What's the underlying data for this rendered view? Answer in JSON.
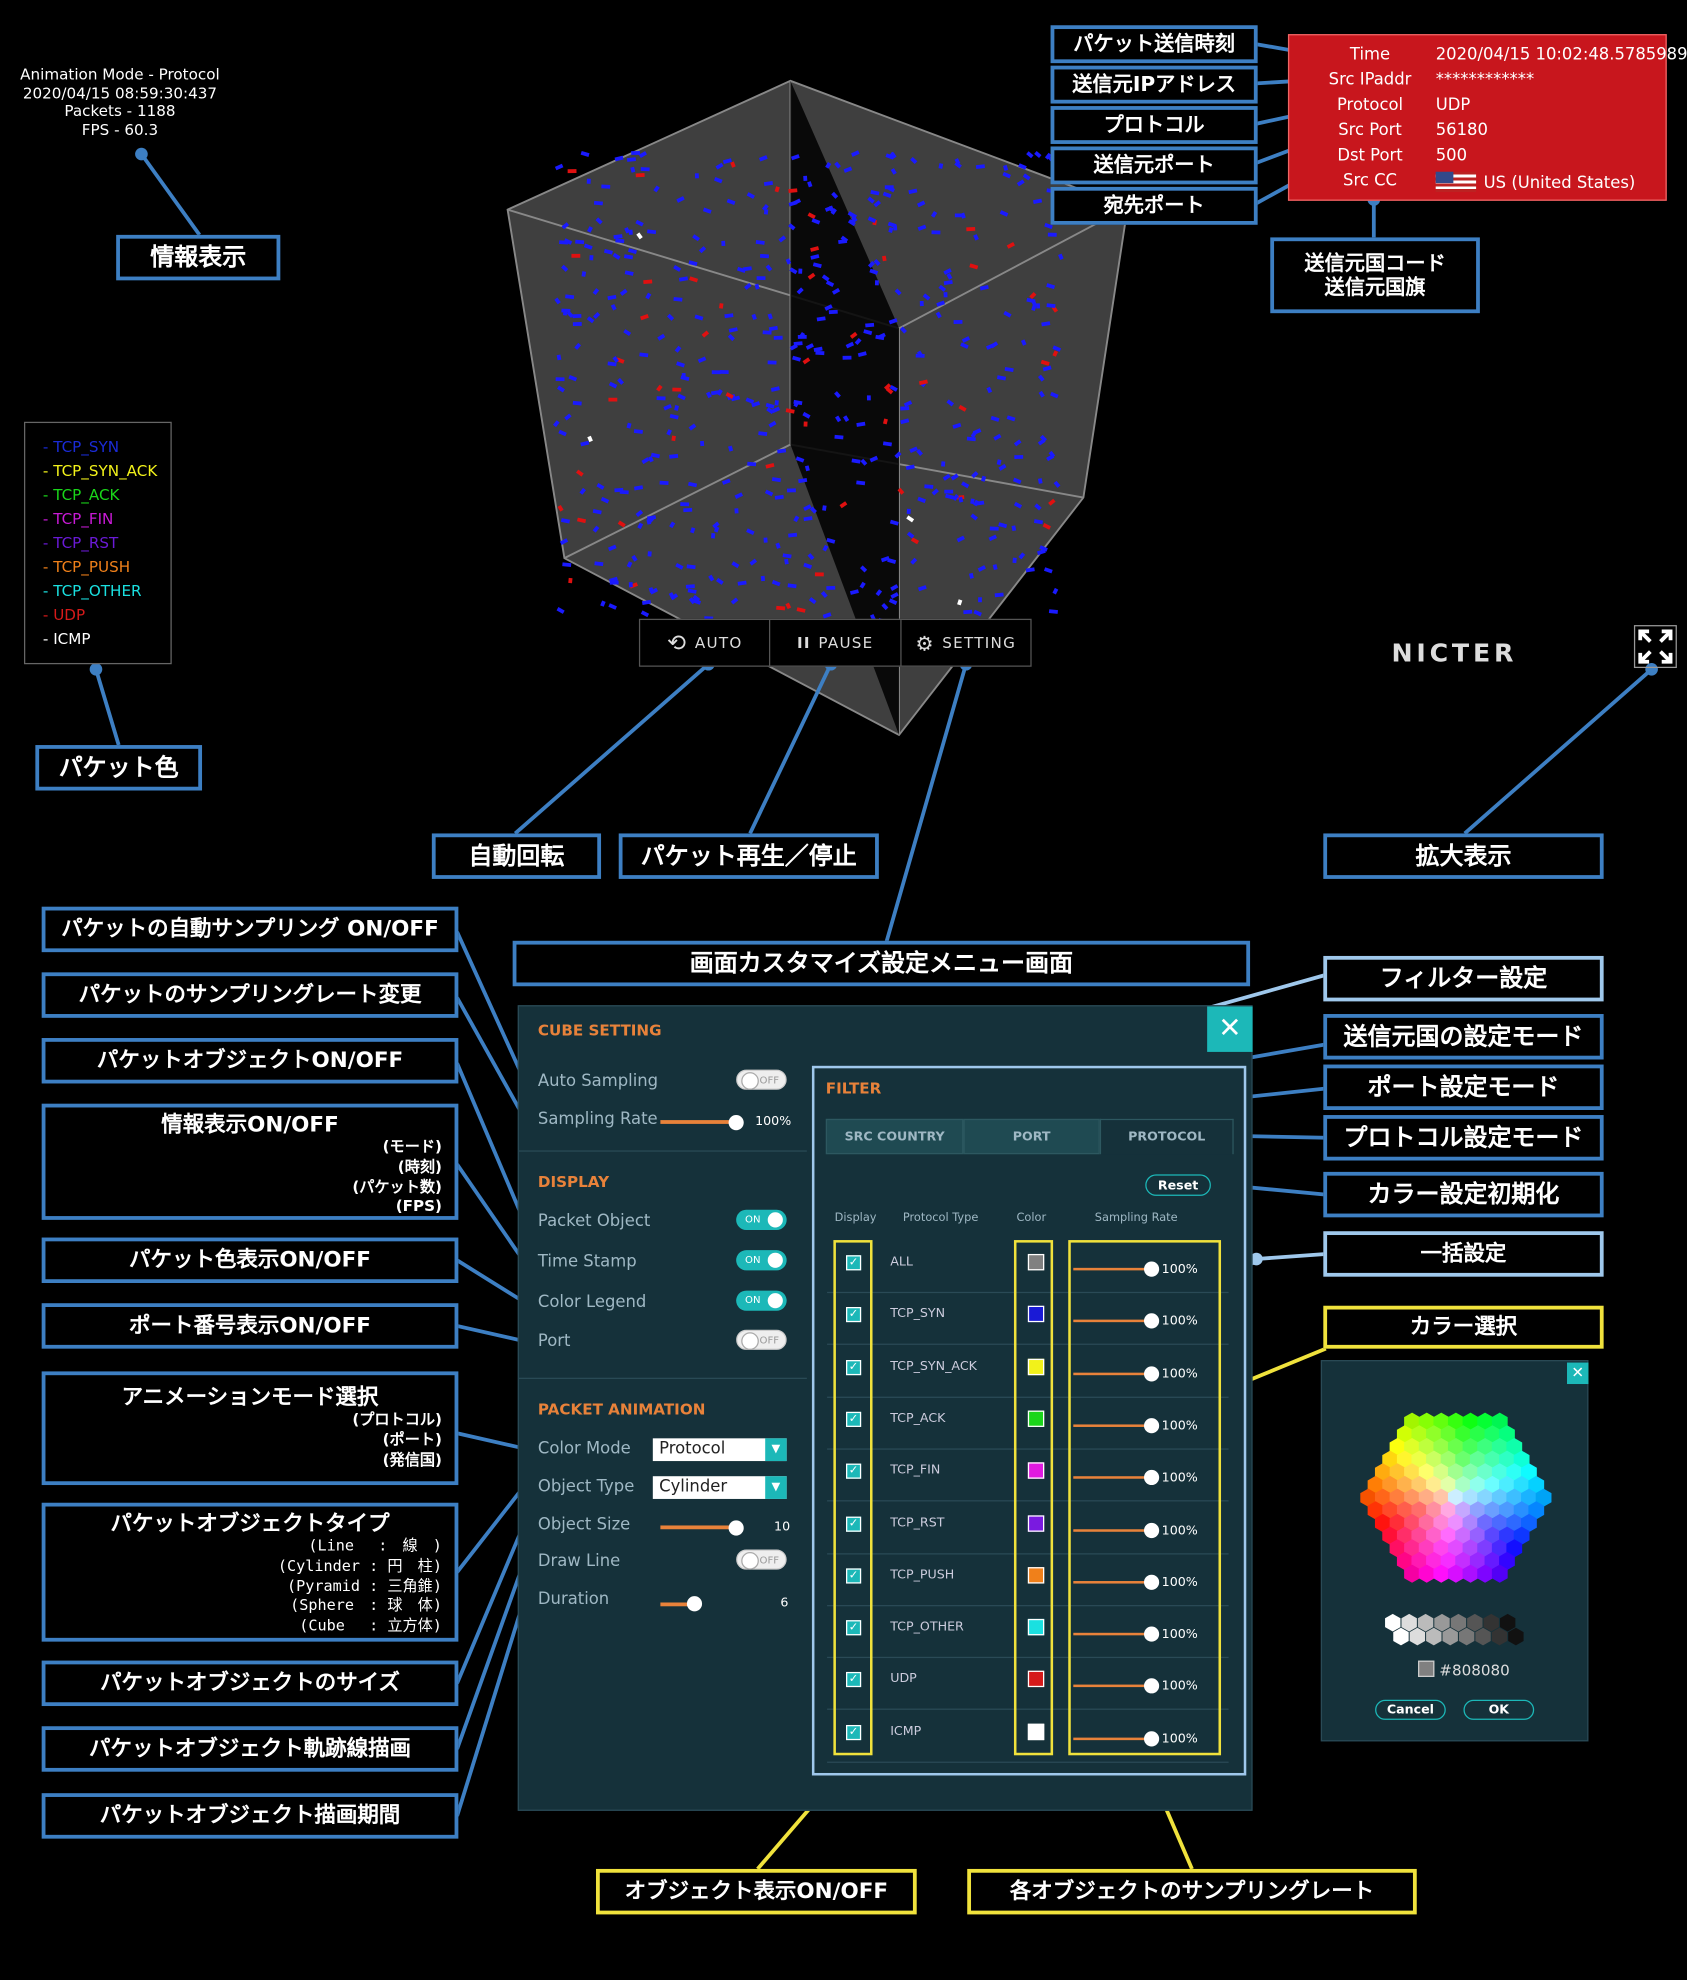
{
  "info_display": {
    "mode": "Animation Mode - Protocol",
    "time": "2020/04/15 08:59:30:437",
    "packets": "Packets - 1188",
    "fps": "FPS - 60.3"
  },
  "legend": [
    {
      "label": "- TCP_SYN",
      "color": "#1a2bd6"
    },
    {
      "label": "- TCP_SYN_ACK",
      "color": "#f2f21a"
    },
    {
      "label": "- TCP_ACK",
      "color": "#1ad61a"
    },
    {
      "label": "- TCP_FIN",
      "color": "#c81ad6"
    },
    {
      "label": "- TCP_RST",
      "color": "#6a1ad6"
    },
    {
      "label": "- TCP_PUSH",
      "color": "#f0801a"
    },
    {
      "label": "- TCP_OTHER",
      "color": "#1ae0e0"
    },
    {
      "label": "- UDP",
      "color": "#d61a1a"
    },
    {
      "label": "- ICMP",
      "color": "#ffffff"
    }
  ],
  "packet_info": {
    "rows": [
      {
        "key": "Time",
        "value": "2020/04/15 10:02:48.5785989"
      },
      {
        "key": "Src IPaddr",
        "value": "************"
      },
      {
        "key": "Protocol",
        "value": "UDP"
      },
      {
        "key": "Src Port",
        "value": "56180"
      },
      {
        "key": "Dst Port",
        "value": "500"
      },
      {
        "key": "Src CC",
        "value": "US (United States)"
      }
    ],
    "flag_icon": "us-flag-icon"
  },
  "controls": {
    "auto": "AUTO",
    "pause": "PAUSE",
    "setting": "SETTING"
  },
  "logo": "NICTER",
  "labels": {
    "send_time": "パケット送信時刻",
    "src_ip": "送信元IPアドレス",
    "protocol": "プロトコル",
    "src_port": "送信元ポート",
    "dst_port": "宛先ポート",
    "src_cc_1": "送信元国コード",
    "src_cc_2": "送信元国旗",
    "info": "情報表示",
    "packet_color": "パケット色",
    "auto_rotate": "自動回転",
    "play_pause": "パケット再生／停止",
    "zoom": "拡大表示",
    "auto_sampling": "パケットの自動サンプリング ON/OFF",
    "sampling_rate": "パケットのサンプリングレート変更",
    "packet_object": "パケットオブジェクトON/OFF",
    "info_onoff": "情報表示ON/OFF",
    "info_onoff_sub": [
      "(モード)",
      "(時刻)",
      "(パケット数)",
      "(FPS)"
    ],
    "color_onoff": "パケット色表示ON/OFF",
    "port_onoff": "ポート番号表示ON/OFF",
    "anim_mode": "アニメーションモード選択",
    "anim_mode_sub": [
      "(プロトコル)",
      "(ポート)",
      "(発信国)"
    ],
    "obj_type": "パケットオブジェクトタイプ",
    "obj_type_sub": [
      "(Line　 :　線　)",
      "(Cylinder : 円　柱)",
      "(Pyramid : 三角錐)",
      "(Sphere　: 球　体)",
      "(Cube　 : 立方体)"
    ],
    "obj_size": "パケットオブジェクトのサイズ",
    "trail": "パケットオブジェクト軌跡線描画",
    "duration": "パケットオブジェクト描画期間",
    "custom_menu": "画面カスタマイズ設定メニュー画面",
    "filter": "フィルター設定",
    "src_country_mode": "送信元国の設定モード",
    "port_mode": "ポート設定モード",
    "protocol_mode": "プロトコル設定モード",
    "color_reset": "カラー設定初期化",
    "batch": "一括設定",
    "color_select": "カラー選択",
    "obj_display": "オブジェクト表示ON/OFF",
    "each_rate": "各オブジェクトのサンプリングレート"
  },
  "cube_setting": {
    "title": "CUBE SETTING",
    "auto_sampling": {
      "label": "Auto Sampling",
      "state": "OFF"
    },
    "sampling_rate": {
      "label": "Sampling Rate",
      "value": "100%",
      "level": 1.0
    },
    "display_title": "DISPLAY",
    "packet_object": {
      "label": "Packet Object",
      "state": "ON"
    },
    "time_stamp": {
      "label": "Time Stamp",
      "state": "ON"
    },
    "color_legend": {
      "label": "Color Legend",
      "state": "ON"
    },
    "port": {
      "label": "Port",
      "state": "OFF"
    },
    "anim_title": "PACKET ANIMATION",
    "color_mode": {
      "label": "Color Mode",
      "value": "Protocol"
    },
    "object_type": {
      "label": "Object Type",
      "value": "Cylinder"
    },
    "object_size": {
      "label": "Object Size",
      "value": "10",
      "level": 1.0
    },
    "draw_line": {
      "label": "Draw Line",
      "state": "OFF"
    },
    "duration": {
      "label": "Duration",
      "value": "6",
      "level": 0.45
    }
  },
  "filter": {
    "title": "FILTER",
    "tabs": [
      "SRC COUNTRY",
      "PORT",
      "PROTOCOL"
    ],
    "reset": "Reset",
    "headers": [
      "Display",
      "Protocol Type",
      "Color",
      "Sampling Rate"
    ],
    "rows": [
      {
        "name": "ALL",
        "color": "#808080",
        "rate": "100%"
      },
      {
        "name": "TCP_SYN",
        "color": "#1a1ad6",
        "rate": "100%"
      },
      {
        "name": "TCP_SYN_ACK",
        "color": "#f2f21a",
        "rate": "100%"
      },
      {
        "name": "TCP_ACK",
        "color": "#1ad61a",
        "rate": "100%"
      },
      {
        "name": "TCP_FIN",
        "color": "#e01ae0",
        "rate": "100%"
      },
      {
        "name": "TCP_RST",
        "color": "#7a1ae0",
        "rate": "100%"
      },
      {
        "name": "TCP_PUSH",
        "color": "#f0801a",
        "rate": "100%"
      },
      {
        "name": "TCP_OTHER",
        "color": "#1ae0e0",
        "rate": "100%"
      },
      {
        "name": "UDP",
        "color": "#d61a1a",
        "rate": "100%"
      },
      {
        "name": "ICMP",
        "color": "#ffffff",
        "rate": "100%"
      }
    ]
  },
  "picker": {
    "hex": "#808080",
    "cancel": "Cancel",
    "ok": "OK"
  }
}
